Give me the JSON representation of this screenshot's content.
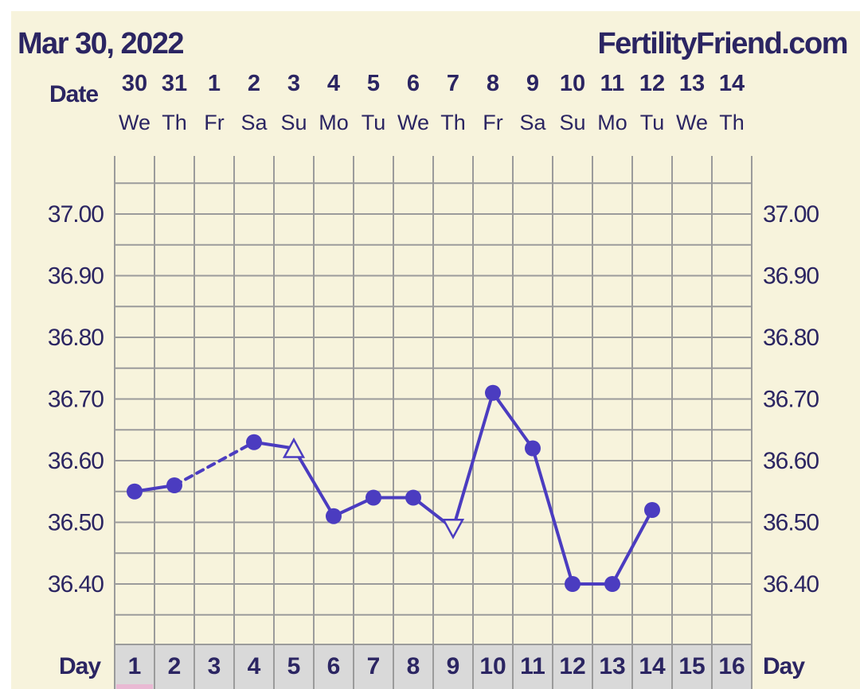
{
  "header": {
    "chart_date": "Mar 30, 2022",
    "site_name": "FertilityFriend.com"
  },
  "colors": {
    "panel_background": "#f7f3dc",
    "grid": "#9b9b9b",
    "series": "#4b3cc0",
    "text": "#2b2562",
    "day_strip": "#d9d9d9",
    "menstruation_marker": "#e9b9d3"
  },
  "chart_data": {
    "type": "line",
    "title": "",
    "xlabel": "Day",
    "ylabel": "",
    "date_label": "Date",
    "day_label": "Day",
    "dates": [
      "30",
      "31",
      "1",
      "2",
      "3",
      "4",
      "5",
      "6",
      "7",
      "8",
      "9",
      "10",
      "11",
      "12",
      "13",
      "14"
    ],
    "weekdays": [
      "We",
      "Th",
      "Fr",
      "Sa",
      "Su",
      "Mo",
      "Tu",
      "We",
      "Th",
      "Fr",
      "Sa",
      "Su",
      "Mo",
      "Tu",
      "We",
      "Th"
    ],
    "days": [
      1,
      2,
      3,
      4,
      5,
      6,
      7,
      8,
      9,
      10,
      11,
      12,
      13,
      14,
      15,
      16
    ],
    "y_ticks": [
      "37.00",
      "36.90",
      "36.80",
      "36.70",
      "36.60",
      "36.50",
      "36.40"
    ],
    "ylim": [
      36.3,
      37.1
    ],
    "grid": true,
    "series": [
      {
        "points": [
          {
            "day": 1,
            "temp": 36.55,
            "marker": "circle"
          },
          {
            "day": 2,
            "temp": 36.56,
            "marker": "circle"
          },
          {
            "day": 4,
            "temp": 36.63,
            "marker": "circle"
          },
          {
            "day": 5,
            "temp": 36.62,
            "marker": "triangle-up-open"
          },
          {
            "day": 6,
            "temp": 36.51,
            "marker": "circle"
          },
          {
            "day": 7,
            "temp": 36.54,
            "marker": "circle"
          },
          {
            "day": 8,
            "temp": 36.54,
            "marker": "circle"
          },
          {
            "day": 9,
            "temp": 36.49,
            "marker": "triangle-down-open"
          },
          {
            "day": 10,
            "temp": 36.71,
            "marker": "circle"
          },
          {
            "day": 11,
            "temp": 36.62,
            "marker": "circle"
          },
          {
            "day": 12,
            "temp": 36.4,
            "marker": "circle"
          },
          {
            "day": 13,
            "temp": 36.4,
            "marker": "circle"
          },
          {
            "day": 14,
            "temp": 36.52,
            "marker": "circle"
          }
        ],
        "dashed_segments": [
          [
            2,
            4
          ]
        ]
      }
    ],
    "menstruation_days": [
      1
    ]
  }
}
